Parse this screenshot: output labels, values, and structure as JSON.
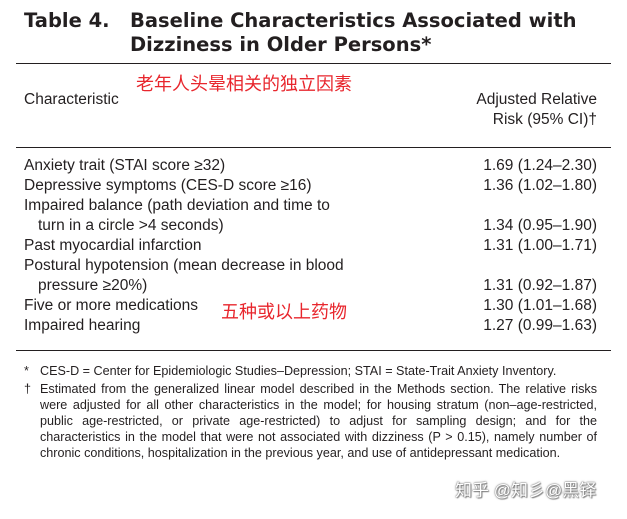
{
  "title": {
    "number": "Table 4.",
    "line1": "Baseline Characteristics Associated with",
    "line2": "Dizziness in Older Persons*"
  },
  "annotations": {
    "header_note": "老年人头晕相关的独立因素",
    "row_note": "五种或以上药物"
  },
  "table": {
    "header_left": "Characteristic",
    "header_right_line1": "Adjusted Relative",
    "header_right_line2": "Risk (95% CI)†",
    "rows": [
      {
        "line1": "Anxiety trait (STAI score ≥32)",
        "line2": "",
        "value": "1.69 (1.24–2.30)"
      },
      {
        "line1": "Depressive symptoms (CES-D score ≥16)",
        "line2": "",
        "value": "1.36 (1.02–1.80)"
      },
      {
        "line1": "Impaired balance (path deviation and time to",
        "line2": "turn in a circle >4 seconds)",
        "value": "1.34 (0.95–1.90)"
      },
      {
        "line1": "Past myocardial infarction",
        "line2": "",
        "value": "1.31 (1.00–1.71)"
      },
      {
        "line1": "Postural hypotension (mean decrease in blood",
        "line2": "pressure ≥20%)",
        "value": "1.31 (0.92–1.87)"
      },
      {
        "line1": "Five or more medications",
        "line2": "",
        "value": "1.30 (1.01–1.68)"
      },
      {
        "line1": "Impaired hearing",
        "line2": "",
        "value": "1.27 (0.99–1.63)"
      }
    ]
  },
  "footnotes": [
    {
      "mark": "*",
      "text": "CES-D = Center for Epidemiologic Studies–Depression; STAI = State-Trait Anxiety Inventory."
    },
    {
      "mark": "†",
      "text": "Estimated from the generalized linear model described in the Methods section. The relative risks were adjusted for all other characteristics in the model; for housing stratum (non–age-restricted, public age-restricted, or private age-restricted) to adjust for sampling design; and for the characteristics in the model that were not associated with dizziness (P > 0.15), namely number of chronic conditions, hospitalization in the previous year, and use of antidepressant medication."
    }
  ],
  "watermark": "知乎 @知彡@黑铎"
}
